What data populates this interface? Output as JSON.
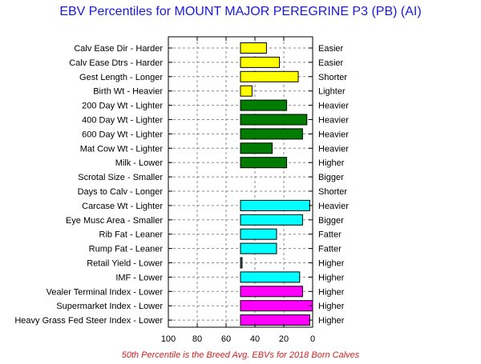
{
  "title": "EBV Percentiles for MOUNT MAJOR PEREGRINE P3 (PB) (AI)",
  "footnote": "50th Percentile is the Breed Avg. EBVs for 2018 Born Calves",
  "colors": {
    "yellow": "#ffff00",
    "green": "#007d00",
    "cyan": "#00ffff",
    "magenta": "#ff00ff",
    "slate": "#3c6e82"
  },
  "chart_data": {
    "type": "bar",
    "orientation": "horizontal",
    "xlim": [
      100,
      0
    ],
    "bar_origin": 50,
    "xticks": [
      "100",
      "80",
      "60",
      "40",
      "20",
      "0"
    ],
    "grid": true,
    "rows": [
      {
        "left_label": "Calv Ease Dir - Harder",
        "right_label": "Easier",
        "value": 32,
        "color": "yellow"
      },
      {
        "left_label": "Calv Ease Dtrs - Harder",
        "right_label": "Easier",
        "value": 23,
        "color": "yellow"
      },
      {
        "left_label": "Gest Length - Longer",
        "right_label": "Shorter",
        "value": 10,
        "color": "yellow"
      },
      {
        "left_label": "Birth Wt - Heavier",
        "right_label": "Lighter",
        "value": 42,
        "color": "yellow"
      },
      {
        "left_label": "200 Day Wt - Lighter",
        "right_label": "Heavier",
        "value": 18,
        "color": "green"
      },
      {
        "left_label": "400 Day Wt - Lighter",
        "right_label": "Heavier",
        "value": 4,
        "color": "green"
      },
      {
        "left_label": "600 Day Wt - Lighter",
        "right_label": "Heavier",
        "value": 7,
        "color": "green"
      },
      {
        "left_label": "Mat Cow Wt - Lighter",
        "right_label": "Heavier",
        "value": 28,
        "color": "green"
      },
      {
        "left_label": "Milk - Lower",
        "right_label": "Higher",
        "value": 18,
        "color": "green"
      },
      {
        "left_label": "Scrotal Size - Smaller",
        "right_label": "Bigger",
        "value": null,
        "color": "green"
      },
      {
        "left_label": "Days to Calv - Longer",
        "right_label": "Shorter",
        "value": null,
        "color": "green"
      },
      {
        "left_label": "Carcase Wt - Lighter",
        "right_label": "Heavier",
        "value": 2,
        "color": "cyan"
      },
      {
        "left_label": "Eye Musc Area - Smaller",
        "right_label": "Bigger",
        "value": 7,
        "color": "cyan"
      },
      {
        "left_label": "Rib Fat - Leaner",
        "right_label": "Fatter",
        "value": 25,
        "color": "cyan"
      },
      {
        "left_label": "Rump Fat - Leaner",
        "right_label": "Fatter",
        "value": 25,
        "color": "cyan"
      },
      {
        "left_label": "Retail Yield - Lower",
        "right_label": "Higher",
        "value": 49,
        "color": "slate"
      },
      {
        "left_label": "IMF - Lower",
        "right_label": "Higher",
        "value": 9,
        "color": "cyan"
      },
      {
        "left_label": "Vealer Terminal Index - Lower",
        "right_label": "Higher",
        "value": 7,
        "color": "magenta"
      },
      {
        "left_label": "Supermarket Index - Lower",
        "right_label": "Higher",
        "value": 0,
        "color": "magenta"
      },
      {
        "left_label": "Heavy Grass Fed Steer Index - Lower",
        "right_label": "Higher",
        "value": 2,
        "color": "magenta"
      }
    ]
  }
}
